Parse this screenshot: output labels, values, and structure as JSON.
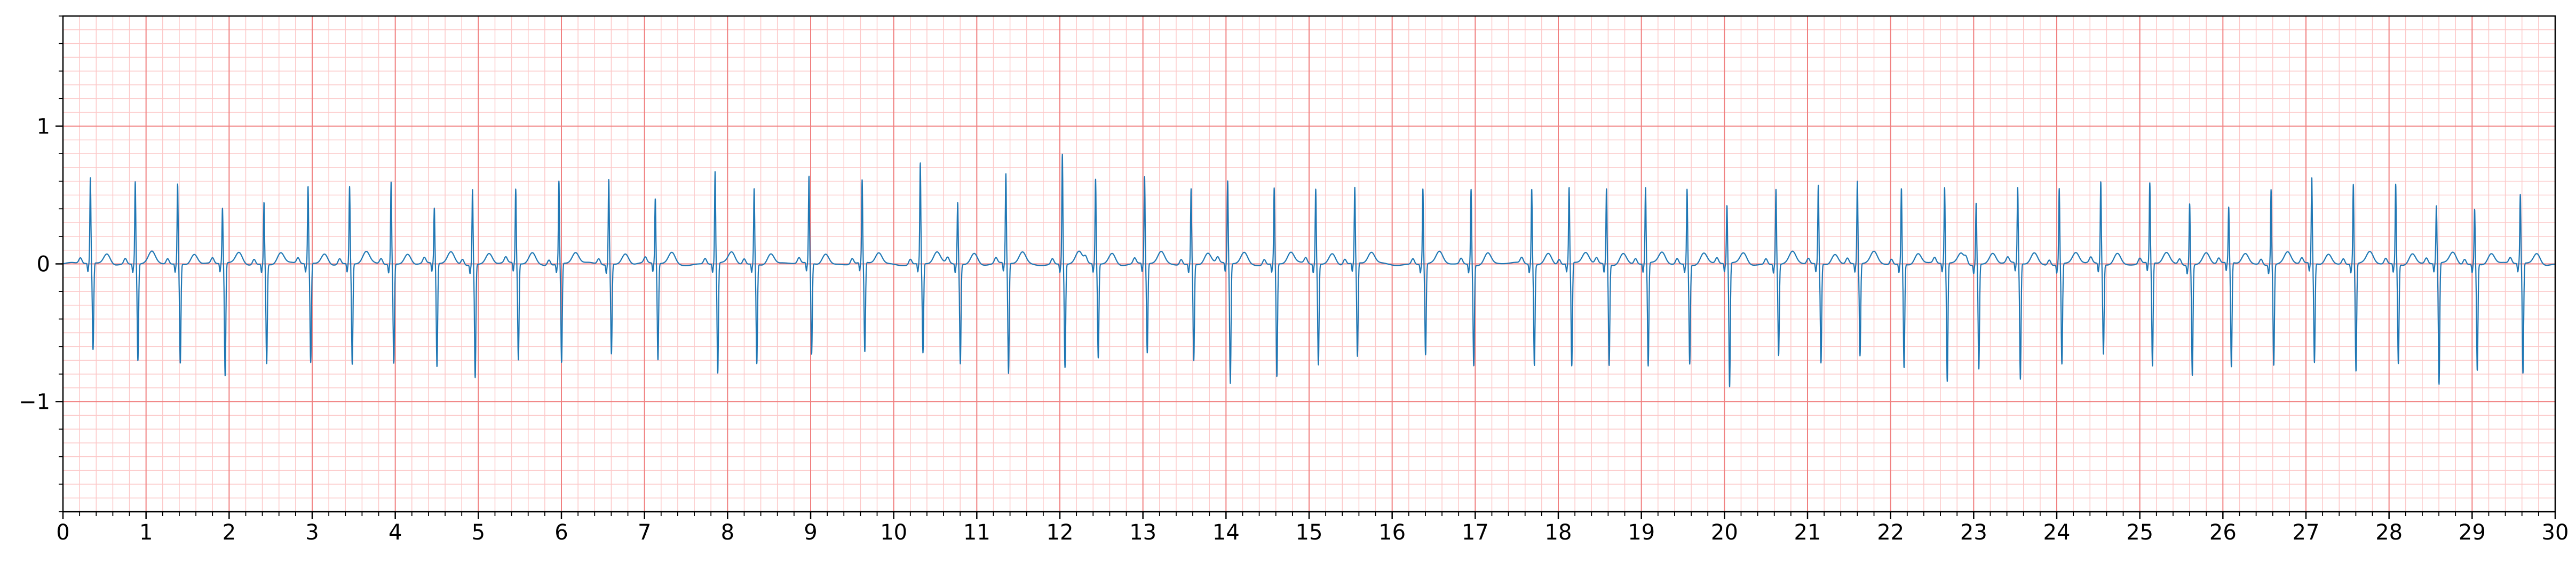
{
  "chart_data": {
    "type": "line",
    "title": "",
    "xlabel": "",
    "ylabel": "",
    "xlim": [
      0,
      30
    ],
    "ylim": [
      -1.8,
      1.8
    ],
    "x_ticks": [
      "0",
      "1",
      "2",
      "3",
      "4",
      "5",
      "6",
      "7",
      "8",
      "9",
      "10",
      "11",
      "12",
      "13",
      "14",
      "15",
      "16",
      "17",
      "18",
      "19",
      "20",
      "21",
      "22",
      "23",
      "24",
      "25",
      "26",
      "27",
      "28",
      "29",
      "30"
    ],
    "y_ticks": [
      {
        "value": -1,
        "label": "−1"
      },
      {
        "value": 0,
        "label": "0"
      },
      {
        "value": 1,
        "label": "1"
      }
    ],
    "grid": {
      "major": true,
      "minor": true,
      "x_major_step": 1,
      "x_minor_step": 0.2,
      "y_major_step": 1,
      "y_minor_step": 0.1
    },
    "colors": {
      "major_grid": "#f08080",
      "minor_grid": "#fcc8c8",
      "signal": "#1f77b4",
      "axes": "#000000"
    },
    "series": [
      {
        "r_peak_times": [
          0.33,
          0.87,
          1.38,
          1.92,
          2.42,
          2.95,
          3.45,
          3.95,
          4.47,
          4.93,
          5.45,
          5.97,
          6.57,
          7.13,
          7.85,
          8.32,
          8.98,
          9.62,
          10.32,
          10.77,
          11.35,
          12.03,
          12.43,
          13.02,
          13.58,
          14.02,
          14.58,
          15.08,
          15.55,
          16.37,
          16.95,
          17.68,
          18.13,
          18.58,
          19.05,
          19.55,
          20.03,
          20.62,
          21.13,
          21.6,
          22.13,
          22.65,
          23.03,
          23.53,
          24.03,
          24.53,
          25.12,
          25.6,
          26.07,
          26.58,
          27.07,
          27.57,
          28.08,
          28.57,
          29.03,
          29.58
        ],
        "r_peak_values": [
          0.62,
          0.6,
          0.58,
          0.4,
          0.45,
          0.56,
          0.56,
          0.6,
          0.4,
          0.55,
          0.54,
          0.6,
          0.62,
          0.47,
          0.67,
          0.55,
          0.63,
          0.6,
          0.73,
          0.45,
          0.65,
          0.8,
          0.62,
          0.63,
          0.55,
          0.6,
          0.55,
          0.55,
          0.55,
          0.55,
          0.55,
          0.55,
          0.55,
          0.55,
          0.55,
          0.55,
          0.42,
          0.55,
          0.57,
          0.6,
          0.55,
          0.55,
          0.45,
          0.55,
          0.55,
          0.6,
          0.58,
          0.45,
          0.4,
          0.55,
          0.62,
          0.58,
          0.58,
          0.42,
          0.4,
          0.5
        ],
        "s_trough_values": [
          -0.63,
          -0.7,
          -0.72,
          -0.82,
          -0.72,
          -0.72,
          -0.73,
          -0.72,
          -0.75,
          -0.82,
          -0.7,
          -0.72,
          -0.65,
          -0.7,
          -0.8,
          -0.72,
          -0.66,
          -0.65,
          -0.65,
          -0.72,
          -0.8,
          -0.75,
          -0.68,
          -0.65,
          -0.7,
          -0.87,
          -0.82,
          -0.73,
          -0.68,
          -0.66,
          -0.73,
          -0.73,
          -0.75,
          -0.73,
          -0.75,
          -0.72,
          -0.9,
          -0.66,
          -0.72,
          -0.67,
          -0.75,
          -0.86,
          -0.76,
          -0.84,
          -0.73,
          -0.65,
          -0.75,
          -0.8,
          -0.76,
          -0.73,
          -0.72,
          -0.78,
          -0.72,
          -0.88,
          -0.77,
          -0.8
        ],
        "t_wave_amplitude": 0.08
      }
    ]
  }
}
